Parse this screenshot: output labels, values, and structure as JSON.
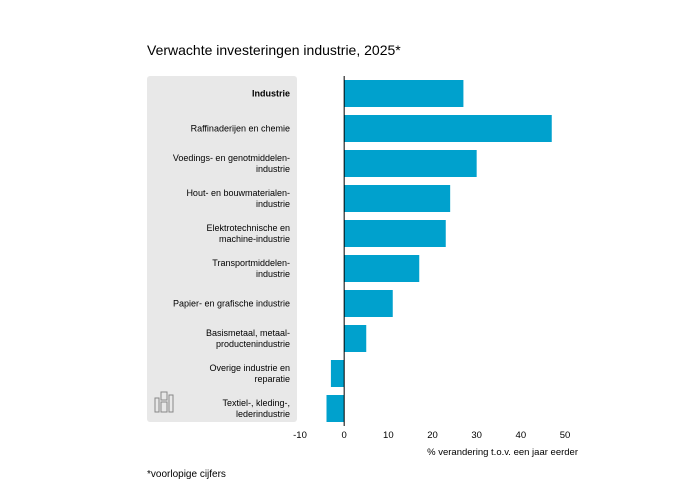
{
  "chart_data": {
    "type": "bar",
    "orientation": "horizontal",
    "title": "Verwachte investeringen industrie, 2025*",
    "xlabel": "% verandering t.o.v. een jaar eerder",
    "ylabel": "",
    "xlim": [
      -10,
      50
    ],
    "xticks": [
      -10,
      0,
      10,
      20,
      30,
      40,
      50
    ],
    "grid": false,
    "bar_color": "#00a1cd",
    "label_panel_color": "#e8e8e8",
    "categories": [
      {
        "label": [
          "Industrie"
        ],
        "bold": true
      },
      {
        "label": [
          "Raffinaderijen en chemie"
        ],
        "bold": false
      },
      {
        "label": [
          "Voedings- en genotmiddelen-",
          "industrie"
        ],
        "bold": false
      },
      {
        "label": [
          "Hout- en bouwmaterialen-",
          "industrie"
        ],
        "bold": false
      },
      {
        "label": [
          "Elektrotechnische en",
          "machine-industrie"
        ],
        "bold": false
      },
      {
        "label": [
          "Transportmiddelen-",
          "industrie"
        ],
        "bold": false
      },
      {
        "label": [
          "Papier- en grafische industrie"
        ],
        "bold": false
      },
      {
        "label": [
          "Basismetaal, metaal-",
          "productenindustrie"
        ],
        "bold": false
      },
      {
        "label": [
          "Overige industrie en",
          "reparatie"
        ],
        "bold": false
      },
      {
        "label": [
          "Textiel-, kleding-,",
          "lederindustrie"
        ],
        "bold": false
      }
    ],
    "values": [
      27,
      47,
      30,
      24,
      23,
      17,
      11,
      5,
      -3,
      -4
    ],
    "footnote": "*voorlopige cijfers",
    "logo_icon": "cbs-logo-icon"
  }
}
